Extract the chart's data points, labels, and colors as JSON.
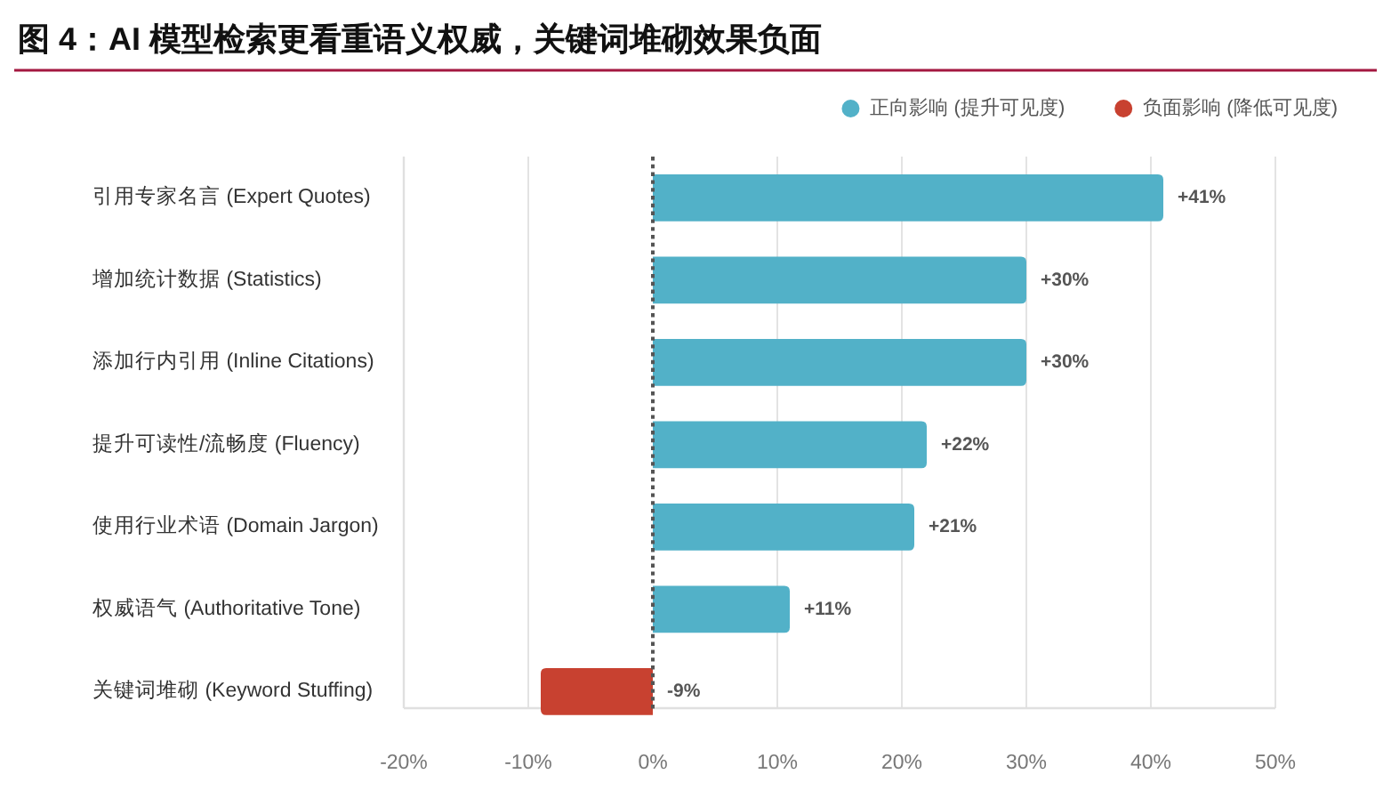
{
  "chart_data": {
    "type": "bar",
    "orientation": "horizontal",
    "stacked": true,
    "title": "图 4：AI 模型检索更看重语义权威，关键词堆砌效果负面",
    "categories": [
      "引用专家名言 (Expert Quotes)",
      "增加统计数据 (Statistics)",
      "添加行内引用 (Inline Citations)",
      "提升可读性/流畅度 (Fluency)",
      "使用行业术语 (Domain Jargon)",
      "权威语气 (Authoritative Tone)",
      "关键词堆砌 (Keyword Stuffing)"
    ],
    "series": [
      {
        "name": "正向影响 (提升可见度)",
        "color": "#52b1c8",
        "values": [
          41,
          30,
          30,
          22,
          21,
          11,
          null
        ],
        "value_labels": [
          "+41%",
          "+30%",
          "+30%",
          "+22%",
          "+21%",
          "+11%",
          null
        ]
      },
      {
        "name": "负面影响 (降低可见度)",
        "color": "#c84130",
        "values": [
          null,
          null,
          null,
          null,
          null,
          null,
          -9
        ],
        "value_labels": [
          null,
          null,
          null,
          null,
          null,
          null,
          "-9%"
        ]
      }
    ],
    "xlim": [
      -20,
      50
    ],
    "xticks": [
      {
        "value": -20,
        "label": "-20%"
      },
      {
        "value": -10,
        "label": "-10%"
      },
      {
        "value": 0,
        "label": "0%"
      },
      {
        "value": 10,
        "label": "10%"
      },
      {
        "value": 20,
        "label": "20%"
      },
      {
        "value": 30,
        "label": "30%"
      },
      {
        "value": 40,
        "label": "40%"
      },
      {
        "value": 50,
        "label": "50%"
      }
    ],
    "grid": "x",
    "legend": "top right",
    "ref_lines": [
      {
        "axis": "x",
        "value": 0,
        "color": "#555555",
        "line_style": "dotted"
      }
    ]
  }
}
